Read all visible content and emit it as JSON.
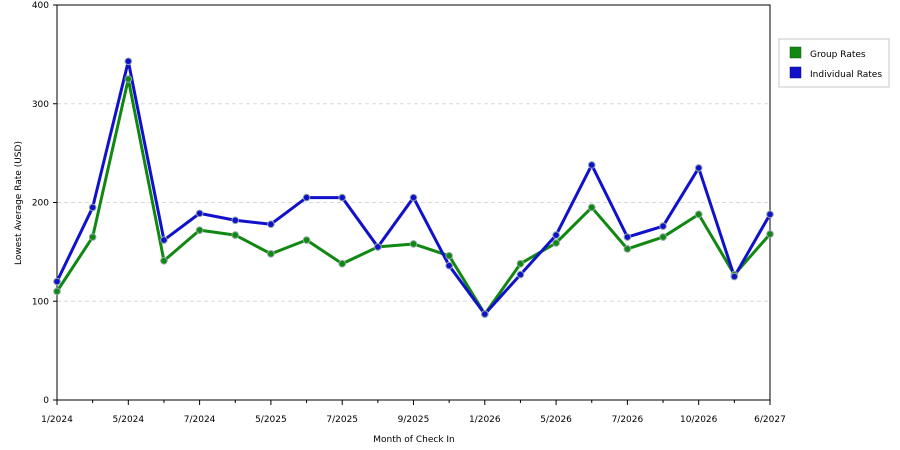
{
  "chart_data": {
    "type": "line",
    "xlabel": "Month of Check In",
    "ylabel": "Lowest Average Rate (USD)",
    "ylim": [
      0,
      400
    ],
    "yticks": [
      0,
      100,
      200,
      300,
      400
    ],
    "grid": "horizontal dashed",
    "legend_position": "right",
    "x_labels": [
      "1/2024",
      "",
      "5/2024",
      "",
      "7/2024",
      "",
      "5/2025",
      "",
      "7/2025",
      "",
      "9/2025",
      "",
      "1/2026",
      "",
      "5/2026",
      "",
      "7/2026",
      "",
      "10/2026",
      "",
      "6/2027"
    ],
    "series": [
      {
        "name": "Group Rates",
        "color": "#118811",
        "values": [
          110,
          165,
          325,
          141,
          172,
          167,
          148,
          162,
          138,
          155,
          158,
          146,
          87,
          138,
          159,
          195,
          153,
          165,
          188,
          127,
          168
        ]
      },
      {
        "name": "Individual Rates",
        "color": "#1111cc",
        "values": [
          120,
          195,
          343,
          162,
          189,
          182,
          178,
          205,
          205,
          155,
          205,
          136,
          87,
          127,
          167,
          238,
          165,
          176,
          235,
          125,
          188
        ]
      }
    ]
  }
}
